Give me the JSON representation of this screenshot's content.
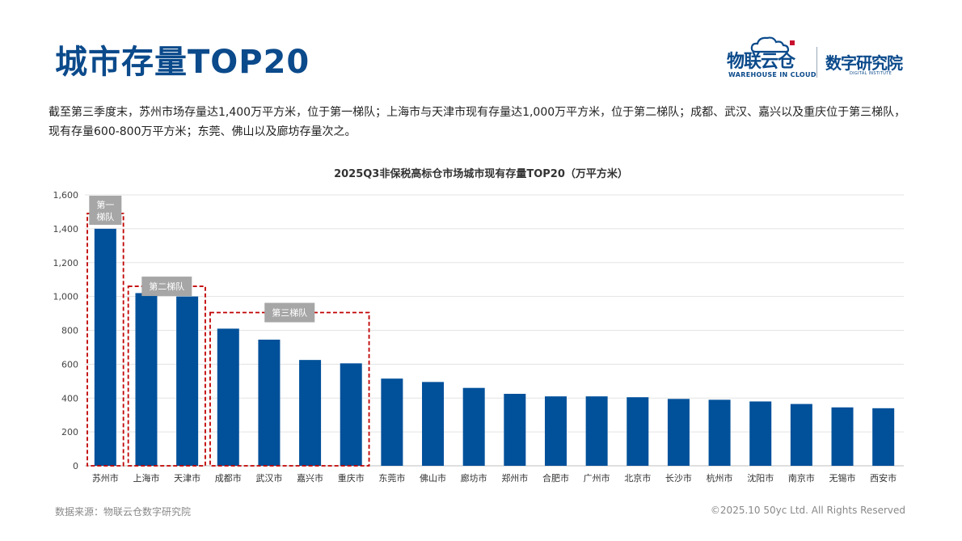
{
  "header": {
    "title": "城市存量TOP20",
    "logo_main": "物联云仓",
    "logo_sub": "WAREHOUSE IN CLOUD",
    "logo_institute": "数字研究院",
    "logo_institute_sub": "DIGITAL INSTITUTE"
  },
  "description": "截至第三季度末，苏州市场存量达1,400万平方米，位于第一梯队；上海市与天津市现有存量达1,000万平方米，位于第二梯队；成都、武汉、嘉兴以及重庆位于第三梯队，现有存量600-800万平方米；东莞、佛山以及廊坊存量次之。",
  "footer": {
    "source": "数据来源：物联云仓数字研究院",
    "copyright": "©2025.10 50yc Ltd. All Rights Reserved"
  },
  "colors": {
    "title": "#0b4a8b",
    "bar": "#00509a",
    "tier_box": "#c00000",
    "tier_label_bg": "#a6a6a6",
    "grid": "#e3e3e3"
  },
  "chart_data": {
    "type": "bar",
    "title": "2025Q3非保税高标仓市场城市现有存量TOP20（万平方米）",
    "categories": [
      "苏州市",
      "上海市",
      "天津市",
      "成都市",
      "武汉市",
      "嘉兴市",
      "重庆市",
      "东莞市",
      "佛山市",
      "廊坊市",
      "郑州市",
      "合肥市",
      "广州市",
      "北京市",
      "长沙市",
      "杭州市",
      "沈阳市",
      "南京市",
      "无锡市",
      "西安市"
    ],
    "values": [
      1400,
      1020,
      1000,
      810,
      745,
      625,
      605,
      515,
      495,
      460,
      425,
      410,
      410,
      405,
      395,
      390,
      380,
      365,
      345,
      340
    ],
    "ylim": [
      0,
      1600
    ],
    "yticks": [
      0,
      200,
      400,
      600,
      800,
      1000,
      1200,
      1400,
      1600
    ],
    "ytick_labels": [
      "0",
      "200",
      "400",
      "600",
      "800",
      "1,000",
      "1,200",
      "1,400",
      "1,600"
    ],
    "grid": true,
    "annotations": [
      {
        "label": "第一梯队",
        "start": 0,
        "end": 0,
        "top_value": 1490
      },
      {
        "label": "第二梯队",
        "start": 1,
        "end": 2,
        "top_value": 1060
      },
      {
        "label": "第三梯队",
        "start": 3,
        "end": 6,
        "top_value": 905
      }
    ]
  }
}
